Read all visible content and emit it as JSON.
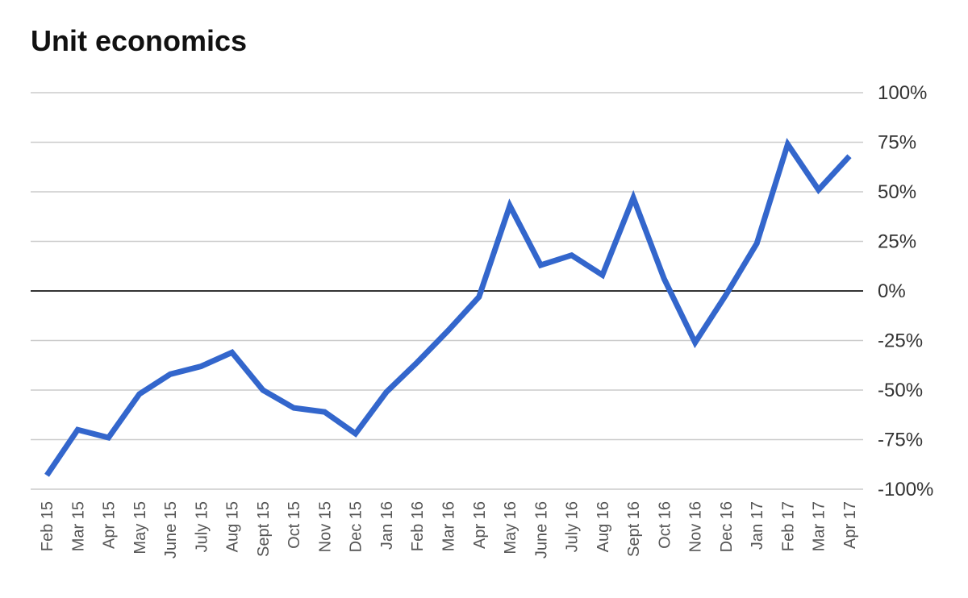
{
  "chart_data": {
    "type": "line",
    "title": "Unit economics",
    "xlabel": "",
    "ylabel": "",
    "categories": [
      "Feb 15",
      "Mar 15",
      "Apr 15",
      "May 15",
      "June 15",
      "July 15",
      "Aug 15",
      "Sept 15",
      "Oct 15",
      "Nov 15",
      "Dec 15",
      "Jan 16",
      "Feb 16",
      "Mar 16",
      "Apr 16",
      "May 16",
      "June 16",
      "July 16",
      "Aug 16",
      "Sept 16",
      "Oct 16",
      "Nov 16",
      "Dec 16",
      "Jan 17",
      "Feb 17",
      "Mar 17",
      "Apr 17"
    ],
    "series": [
      {
        "values": [
          -93,
          -70,
          -74,
          -52,
          -42,
          -38,
          -31,
          -50,
          -59,
          -61,
          -72,
          -51,
          -36,
          -20,
          -3,
          43,
          13,
          18,
          8,
          47,
          6,
          -26,
          -2,
          24,
          74,
          51,
          68
        ]
      }
    ],
    "ylim": [
      -100,
      100
    ],
    "yticks": [
      100,
      75,
      50,
      25,
      0,
      -25,
      -50,
      -75,
      -100
    ],
    "ytick_labels": [
      "100%",
      "75%",
      "50%",
      "25%",
      "0%",
      "-25%",
      "-50%",
      "-75%",
      "-100%"
    ],
    "grid": true,
    "legend": "none",
    "line_color": "#3366cc",
    "zero_line_color": "#333333",
    "grid_color": "#cccccc"
  }
}
